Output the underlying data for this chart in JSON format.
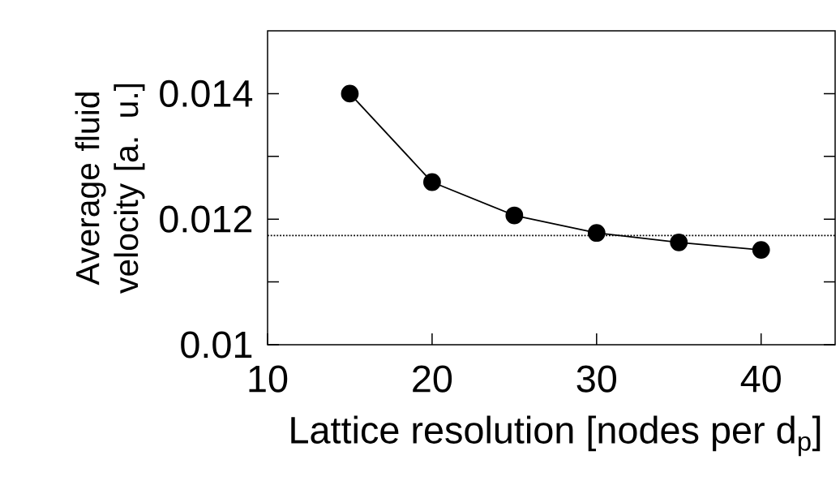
{
  "chart_data": {
    "type": "line",
    "xlabel": "Lattice resolution [nodes per d$_{p}$]",
    "ylabel": "Average fluid velocity [a. u.]",
    "x": [
      15,
      20,
      25,
      30,
      35,
      40
    ],
    "series": [
      {
        "color": "#000000",
        "values": [
          0.014,
          0.01259,
          0.01206,
          0.01178,
          0.01163,
          0.01151
        ]
      }
    ],
    "xlim": [
      10,
      44.5
    ],
    "xticks": [
      10,
      20,
      30,
      40
    ],
    "ylim": [
      0.01,
      0.015
    ],
    "yticks": [
      {
        "value": 0.01,
        "label": "0.01"
      },
      {
        "value": 0.011,
        "label": null
      },
      {
        "value": 0.012,
        "label": "0.012"
      },
      {
        "value": 0.013,
        "label": null
      },
      {
        "value": 0.014,
        "label": "0.014"
      }
    ],
    "ref_lines": [
      {
        "axis": "y",
        "value": 0.01174,
        "line_style": "dotted",
        "color": "#000000"
      }
    ],
    "marker": "circle",
    "line_style": "solid",
    "grid": false
  }
}
